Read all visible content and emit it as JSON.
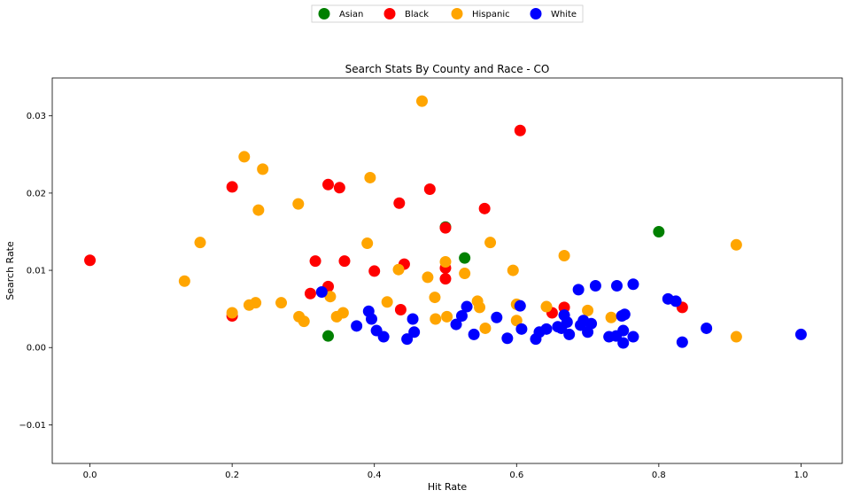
{
  "chart_data": {
    "type": "scatter",
    "title": "Search Stats By County and Race - CO",
    "xlabel": "Hit Rate",
    "ylabel": "Search Rate",
    "xlim": [
      -0.053,
      1.058
    ],
    "ylim": [
      -0.015,
      0.0349
    ],
    "xticks": [
      0.0,
      0.2,
      0.4,
      0.6,
      0.8,
      1.0
    ],
    "xtick_labels": [
      "0.0",
      "0.2",
      "0.4",
      "0.6",
      "0.8",
      "1.0"
    ],
    "yticks": [
      -0.01,
      0.0,
      0.01,
      0.02,
      0.03
    ],
    "ytick_labels": [
      "−0.01",
      "0.00",
      "0.01",
      "0.02",
      "0.03"
    ],
    "grid": false,
    "legend_position": "top-center, outside plot",
    "series": [
      {
        "name": "Asian",
        "color": "#008000",
        "points": [
          [
            0.335,
            0.0015
          ],
          [
            0.5,
            0.0156
          ],
          [
            0.527,
            0.0116
          ],
          [
            0.8,
            0.015
          ]
        ]
      },
      {
        "name": "Black",
        "color": "#ff0000",
        "points": [
          [
            0.0,
            0.0113
          ],
          [
            0.2,
            0.0041
          ],
          [
            0.2,
            0.0208
          ],
          [
            0.31,
            0.007
          ],
          [
            0.317,
            0.0112
          ],
          [
            0.335,
            0.0079
          ],
          [
            0.335,
            0.0211
          ],
          [
            0.351,
            0.0207
          ],
          [
            0.358,
            0.0112
          ],
          [
            0.4,
            0.0099
          ],
          [
            0.435,
            0.0187
          ],
          [
            0.437,
            0.0049
          ],
          [
            0.442,
            0.0108
          ],
          [
            0.478,
            0.0205
          ],
          [
            0.5,
            0.0155
          ],
          [
            0.5,
            0.0103
          ],
          [
            0.5,
            0.0089
          ],
          [
            0.555,
            0.018
          ],
          [
            0.605,
            0.0281
          ],
          [
            0.65,
            0.0045
          ],
          [
            0.667,
            0.0052
          ],
          [
            0.833,
            0.0052
          ]
        ]
      },
      {
        "name": "Hispanic",
        "color": "#ffa500",
        "points": [
          [
            0.133,
            0.0086
          ],
          [
            0.155,
            0.0136
          ],
          [
            0.2,
            0.0045
          ],
          [
            0.217,
            0.0247
          ],
          [
            0.224,
            0.0055
          ],
          [
            0.233,
            0.0058
          ],
          [
            0.237,
            0.0178
          ],
          [
            0.243,
            0.0231
          ],
          [
            0.269,
            0.0058
          ],
          [
            0.293,
            0.0186
          ],
          [
            0.294,
            0.004
          ],
          [
            0.301,
            0.0034
          ],
          [
            0.338,
            0.0066
          ],
          [
            0.347,
            0.004
          ],
          [
            0.356,
            0.0045
          ],
          [
            0.39,
            0.0135
          ],
          [
            0.394,
            0.022
          ],
          [
            0.418,
            0.0059
          ],
          [
            0.434,
            0.0101
          ],
          [
            0.467,
            0.0319
          ],
          [
            0.475,
            0.0091
          ],
          [
            0.485,
            0.0065
          ],
          [
            0.486,
            0.0037
          ],
          [
            0.5,
            0.0111
          ],
          [
            0.502,
            0.004
          ],
          [
            0.527,
            0.0096
          ],
          [
            0.545,
            0.006
          ],
          [
            0.548,
            0.0052
          ],
          [
            0.556,
            0.0025
          ],
          [
            0.563,
            0.0136
          ],
          [
            0.595,
            0.01
          ],
          [
            0.6,
            0.0056
          ],
          [
            0.6,
            0.0035
          ],
          [
            0.642,
            0.0053
          ],
          [
            0.667,
            0.0119
          ],
          [
            0.7,
            0.0048
          ],
          [
            0.733,
            0.0039
          ],
          [
            0.909,
            0.0133
          ],
          [
            0.909,
            0.0014
          ]
        ]
      },
      {
        "name": "White",
        "color": "#0000ff",
        "points": [
          [
            0.326,
            0.0072
          ],
          [
            0.375,
            0.0028
          ],
          [
            0.392,
            0.0047
          ],
          [
            0.396,
            0.0037
          ],
          [
            0.403,
            0.0022
          ],
          [
            0.413,
            0.0014
          ],
          [
            0.446,
            0.0011
          ],
          [
            0.454,
            0.0037
          ],
          [
            0.456,
            0.002
          ],
          [
            0.515,
            0.003
          ],
          [
            0.523,
            0.0041
          ],
          [
            0.53,
            0.0053
          ],
          [
            0.54,
            0.0017
          ],
          [
            0.572,
            0.0039
          ],
          [
            0.587,
            0.0012
          ],
          [
            0.605,
            0.0054
          ],
          [
            0.607,
            0.0024
          ],
          [
            0.627,
            0.0011
          ],
          [
            0.632,
            0.002
          ],
          [
            0.642,
            0.0024
          ],
          [
            0.658,
            0.0027
          ],
          [
            0.663,
            0.0025
          ],
          [
            0.667,
            0.0042
          ],
          [
            0.671,
            0.0033
          ],
          [
            0.674,
            0.0017
          ],
          [
            0.687,
            0.0075
          ],
          [
            0.69,
            0.0029
          ],
          [
            0.694,
            0.0035
          ],
          [
            0.7,
            0.002
          ],
          [
            0.705,
            0.0031
          ],
          [
            0.711,
            0.008
          ],
          [
            0.73,
            0.0014
          ],
          [
            0.74,
            0.0015
          ],
          [
            0.741,
            0.008
          ],
          [
            0.748,
            0.0041
          ],
          [
            0.75,
            0.0006
          ],
          [
            0.75,
            0.0022
          ],
          [
            0.752,
            0.0043
          ],
          [
            0.764,
            0.0082
          ],
          [
            0.764,
            0.0014
          ],
          [
            0.813,
            0.0063
          ],
          [
            0.824,
            0.006
          ],
          [
            0.833,
            0.0007
          ],
          [
            0.867,
            0.0025
          ],
          [
            1.0,
            0.0017
          ]
        ]
      }
    ]
  }
}
